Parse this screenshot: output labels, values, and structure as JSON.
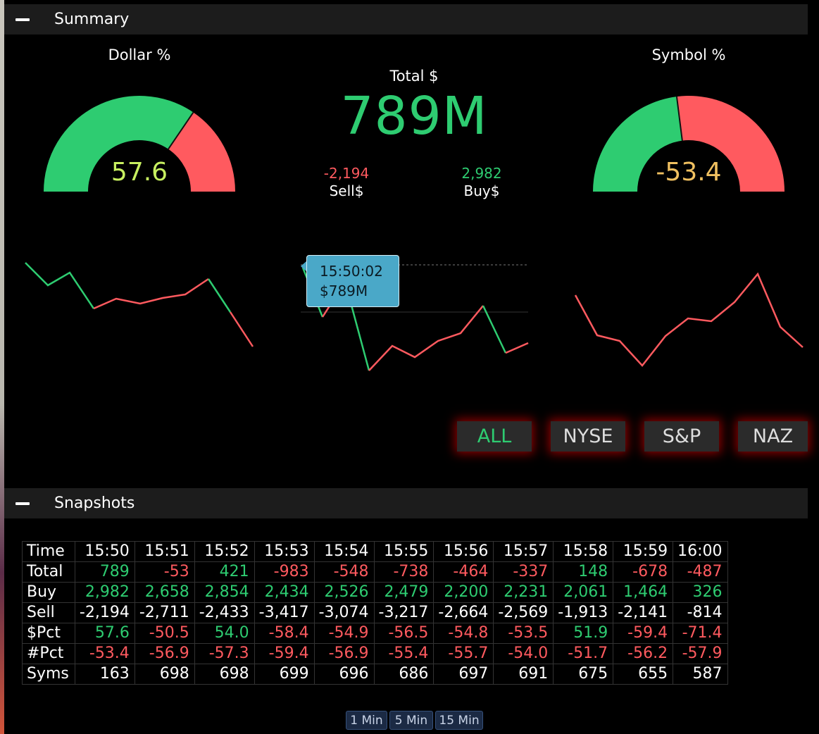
{
  "summary": {
    "title": "Summary",
    "dollar_pct": {
      "title": "Dollar %",
      "value": "57.6",
      "fraction": 0.69
    },
    "symbol_pct": {
      "title": "Symbol %",
      "value": "-53.4",
      "fraction": 0.46
    },
    "total": {
      "label": "Total $",
      "value": "789M"
    },
    "sell": {
      "value": "-2,194",
      "label": "Sell$"
    },
    "buy": {
      "value": "2,982",
      "label": "Buy$"
    },
    "tooltip": {
      "time": "15:50:02",
      "value": "$789M"
    },
    "exchanges": [
      "ALL",
      "NYSE",
      "S&P",
      "NAZ"
    ],
    "selected_exchange": "ALL"
  },
  "colors": {
    "green": "#2ecc71",
    "red": "#ff5a5f",
    "yellow_green": "#c8f060",
    "gold": "#f0c060",
    "tooltip_bg": "#4aa8c8"
  },
  "snapshots": {
    "title": "Snapshots",
    "columns": [
      "Time",
      "15:50",
      "15:51",
      "15:52",
      "15:53",
      "15:54",
      "15:55",
      "15:56",
      "15:57",
      "15:58",
      "15:59",
      "16:00"
    ],
    "rows": [
      {
        "label": "Total",
        "values": [
          "789",
          "-53",
          "421",
          "-983",
          "-548",
          "-738",
          "-464",
          "-337",
          "148",
          "-678",
          "-487"
        ],
        "colors": [
          "pos",
          "neg",
          "pos",
          "neg",
          "neg",
          "neg",
          "neg",
          "neg",
          "pos",
          "neg",
          "neg"
        ]
      },
      {
        "label": "Buy",
        "values": [
          "2,982",
          "2,658",
          "2,854",
          "2,434",
          "2,526",
          "2,479",
          "2,200",
          "2,231",
          "2,061",
          "1,464",
          "326"
        ],
        "colors": [
          "pos",
          "pos",
          "pos",
          "pos",
          "pos",
          "pos",
          "pos",
          "pos",
          "pos",
          "pos",
          "pos"
        ]
      },
      {
        "label": "Sell",
        "values": [
          "-2,194",
          "-2,711",
          "-2,433",
          "-3,417",
          "-3,074",
          "-3,217",
          "-2,664",
          "-2,569",
          "-1,913",
          "-2,141",
          "-814"
        ],
        "colors": [
          "neu",
          "neu",
          "neu",
          "neu",
          "neu",
          "neu",
          "neu",
          "neu",
          "neu",
          "neu",
          "neu"
        ]
      },
      {
        "label": "$Pct",
        "values": [
          "57.6",
          "-50.5",
          "54.0",
          "-58.4",
          "-54.9",
          "-56.5",
          "-54.8",
          "-53.5",
          "51.9",
          "-59.4",
          "-71.4"
        ],
        "colors": [
          "pos",
          "neg",
          "pos",
          "neg",
          "neg",
          "neg",
          "neg",
          "neg",
          "pos",
          "neg",
          "neg"
        ]
      },
      {
        "label": "#Pct",
        "values": [
          "-53.4",
          "-56.9",
          "-57.3",
          "-59.4",
          "-56.9",
          "-55.4",
          "-55.7",
          "-54.0",
          "-51.7",
          "-56.2",
          "-57.9"
        ],
        "colors": [
          "neg",
          "neg",
          "neg",
          "neg",
          "neg",
          "neg",
          "neg",
          "neg",
          "neg",
          "neg",
          "neg"
        ]
      },
      {
        "label": "Syms",
        "values": [
          "163",
          "698",
          "698",
          "699",
          "696",
          "686",
          "697",
          "691",
          "675",
          "655",
          "587"
        ],
        "colors": [
          "neu",
          "neu",
          "neu",
          "neu",
          "neu",
          "neu",
          "neu",
          "neu",
          "neu",
          "neu",
          "neu"
        ]
      }
    ],
    "intervals": [
      "1 Min",
      "5 Min",
      "15 Min"
    ]
  }
}
